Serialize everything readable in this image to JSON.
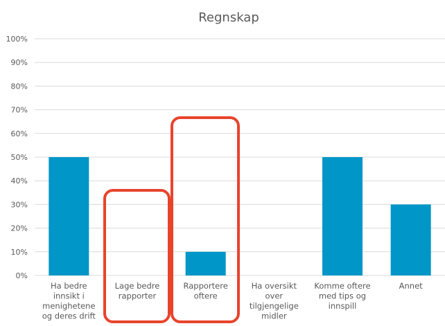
{
  "chart_data": {
    "type": "bar",
    "title": "Regnskap",
    "categories": [
      [
        "Ha bedre",
        "innsikt i",
        "menighetene",
        "og deres drift"
      ],
      [
        "Lage bedre",
        "rapporter"
      ],
      [
        "Rapportere",
        "oftere"
      ],
      [
        "Ha oversikt",
        "over",
        "tilgjengelige",
        "midler"
      ],
      [
        "Komme oftere",
        "med tips og",
        "innspill"
      ],
      [
        "Annet"
      ]
    ],
    "values": [
      50,
      0,
      10,
      0,
      50,
      30
    ],
    "ylim": [
      0,
      100
    ],
    "yticks": [
      "0%",
      "10%",
      "20%",
      "30%",
      "40%",
      "50%",
      "60%",
      "70%",
      "80%",
      "90%",
      "100%"
    ],
    "grid": true,
    "bar_color": "#0096C8",
    "grid_color": "#D9D9D9",
    "highlight_color": "#E8442C",
    "highlighted_categories": [
      1,
      2
    ]
  }
}
